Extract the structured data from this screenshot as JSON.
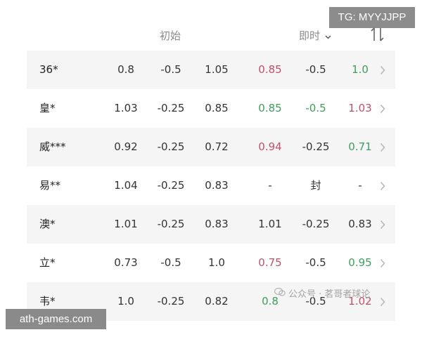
{
  "badge_top": "TG: MYYJJPP",
  "header": {
    "initial_label": "初始",
    "live_label": "即时"
  },
  "rows": [
    {
      "name": "36*",
      "i1": "0.8",
      "i2": "-0.5",
      "i3": "1.05",
      "l1": "0.85",
      "l2": "-0.5",
      "l3": "1.0",
      "l1_tone": "up",
      "l3_tone": "down"
    },
    {
      "name": "皇*",
      "i1": "1.03",
      "i2": "-0.25",
      "i3": "0.85",
      "l1": "0.85",
      "l2": "-0.5",
      "l3": "1.03",
      "l1_tone": "down",
      "l2_tone": "down",
      "l3_tone": "up"
    },
    {
      "name": "威***",
      "i1": "0.92",
      "i2": "-0.25",
      "i3": "0.72",
      "l1": "0.94",
      "l2": "-0.25",
      "l3": "0.71",
      "l1_tone": "up",
      "l3_tone": "down"
    },
    {
      "name": "易**",
      "i1": "1.04",
      "i2": "-0.25",
      "i3": "0.83",
      "l1": "-",
      "l2": "封",
      "l3": "-"
    },
    {
      "name": "澳*",
      "i1": "1.01",
      "i2": "-0.25",
      "i3": "0.83",
      "l1": "1.01",
      "l2": "-0.25",
      "l3": "0.83"
    },
    {
      "name": "立*",
      "i1": "0.73",
      "i2": "-0.5",
      "i3": "1.0",
      "l1": "0.75",
      "l2": "-0.5",
      "l3": "0.95",
      "l1_tone": "up",
      "l3_tone": "down"
    },
    {
      "name": "韦*",
      "i1": "1.0",
      "i2": "-0.25",
      "i3": "0.82",
      "l1": "0.8",
      "l2": "-0.5",
      "l3": "1.02",
      "l1_tone": "down",
      "l3_tone": "up"
    }
  ],
  "watermark": "公众号 · 茗哥者球论",
  "badge_bottom": "ath-games.com"
}
